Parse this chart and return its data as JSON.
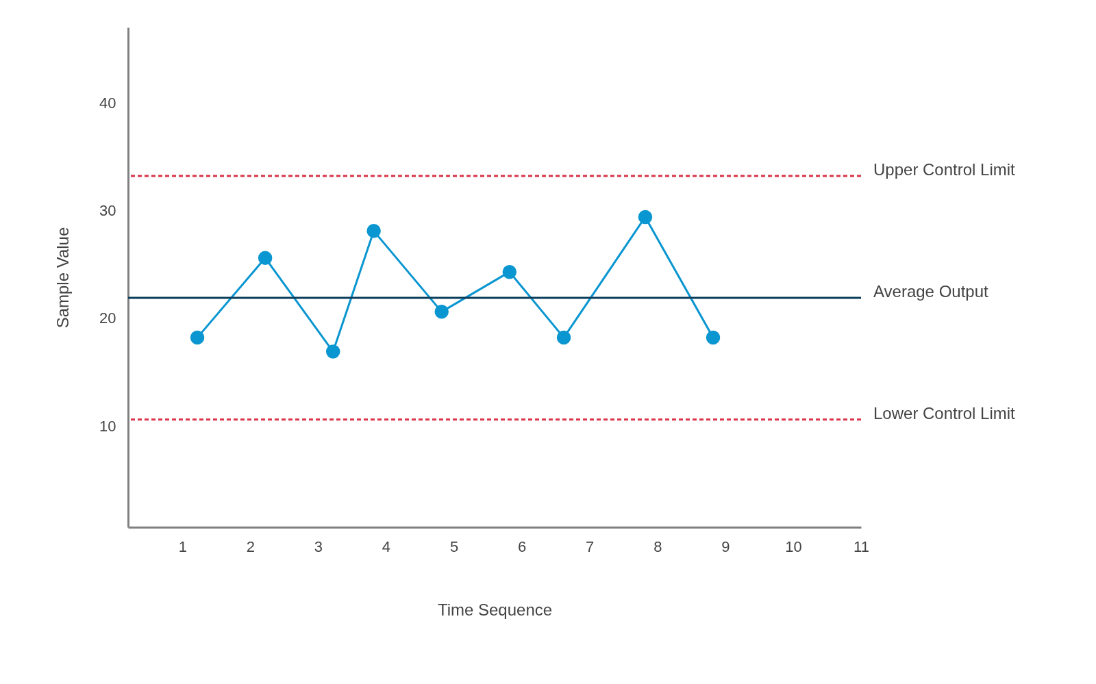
{
  "chart_data": {
    "type": "line",
    "xlabel": "Time Sequence",
    "ylabel": "Sample Value",
    "x": [
      1.22,
      2.22,
      3.22,
      3.82,
      4.82,
      5.82,
      6.62,
      7.82,
      8.82
    ],
    "series": [
      {
        "color": "#0a96d0",
        "values": [
          18.2,
          25.6,
          16.9,
          28.1,
          20.6,
          24.3,
          18.2,
          29.4,
          18.2
        ]
      }
    ],
    "xlim": [
      0.2,
      11.0
    ],
    "ylim": [
      0.6,
      47
    ],
    "xticks": [
      1,
      2,
      3,
      4,
      5,
      6,
      7,
      8,
      9,
      10,
      11
    ],
    "yticks": [
      10,
      20,
      30,
      40
    ],
    "ref_lines": [
      {
        "axis": "y",
        "value": 33.2,
        "label": "Upper Control Limit",
        "color": "#d9344a",
        "line_style": "dashed"
      },
      {
        "axis": "y",
        "value": 21.9,
        "label": "Average Output",
        "color": "#0d3f5c",
        "line_style": "solid"
      },
      {
        "axis": "y",
        "value": 10.6,
        "label": "Lower Control Limit",
        "color": "#d9344a",
        "line_style": "dashed"
      }
    ],
    "grid": false,
    "marker": "circle",
    "line_style": "solid"
  }
}
